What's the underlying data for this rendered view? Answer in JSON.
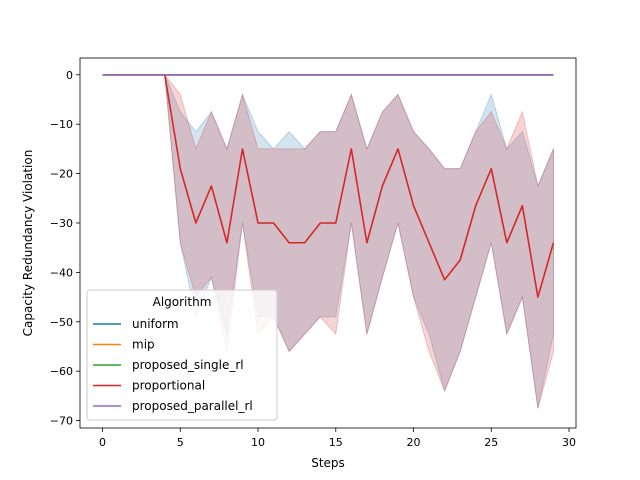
{
  "chart_data": {
    "type": "line",
    "title": "",
    "xlabel": "Steps",
    "ylabel": "Capacity Redundancy Violation",
    "xlim": [
      -1.45,
      30.45
    ],
    "ylim": [
      -71.5,
      3.4
    ],
    "grid": false,
    "legend_title": "Algorithm",
    "legend_position": "lower left",
    "x_ticks": [
      0,
      5,
      10,
      15,
      20,
      25,
      30
    ],
    "y_ticks": [
      0,
      -10,
      -20,
      -30,
      -40,
      -50,
      -60,
      -70
    ],
    "x": [
      0,
      1,
      2,
      3,
      4,
      5,
      6,
      7,
      8,
      9,
      10,
      11,
      12,
      13,
      14,
      15,
      16,
      17,
      18,
      19,
      20,
      21,
      22,
      23,
      24,
      25,
      26,
      27,
      28,
      29
    ],
    "series": [
      {
        "name": "uniform",
        "color": "#1f77b4",
        "values": [
          0,
          0,
          0,
          0,
          0,
          0,
          0,
          0,
          0,
          0,
          0,
          0,
          0,
          0,
          0,
          0,
          0,
          0,
          0,
          0,
          0,
          0,
          0,
          0,
          0,
          0,
          0,
          0,
          0,
          0
        ]
      },
      {
        "name": "mip",
        "color": "#ff7f0e",
        "values": [
          0,
          0,
          0,
          0,
          0,
          0,
          0,
          0,
          0,
          0,
          0,
          0,
          0,
          0,
          0,
          0,
          0,
          0,
          0,
          0,
          0,
          0,
          0,
          0,
          0,
          0,
          0,
          0,
          0,
          0
        ]
      },
      {
        "name": "proposed_single_rl",
        "color": "#2ca02c",
        "values": [
          0,
          0,
          0,
          0,
          0,
          0,
          0,
          0,
          0,
          0,
          0,
          0,
          0,
          0,
          0,
          0,
          0,
          0,
          0,
          0,
          0,
          0,
          0,
          0,
          0,
          0,
          0,
          0,
          0,
          0
        ]
      },
      {
        "name": "proportional",
        "color": "#d62728",
        "values": [
          0,
          0,
          0,
          0,
          0,
          -19,
          -30,
          -22.5,
          -34,
          -15,
          -30,
          -30,
          -34,
          -34,
          -30,
          -30,
          -15,
          -34,
          -22.5,
          -15,
          -26.5,
          -34,
          -41.5,
          -37.5,
          -26.5,
          -19,
          -34,
          -26.5,
          -45,
          -34
        ],
        "ci_upper": [
          0,
          0,
          0,
          0,
          0,
          -4,
          -15,
          -7.5,
          -15,
          -4,
          -15,
          -15,
          -15,
          -15,
          -11.5,
          -11.5,
          -4,
          -15,
          -7.5,
          -4,
          -11.5,
          -15,
          -19,
          -19,
          -11.5,
          -7.5,
          -15,
          -7.5,
          -22.5,
          -15
        ],
        "ci_lower": [
          0,
          0,
          0,
          0,
          0,
          -34,
          -45,
          -41,
          -56,
          -30,
          -52.5,
          -49,
          -56,
          -52.5,
          -49,
          -52.5,
          -30,
          -52.5,
          -41,
          -30,
          -45,
          -56,
          -64,
          -56,
          -45,
          -34,
          -52.5,
          -45,
          -67.5,
          -56
        ]
      },
      {
        "name": "proposed_parallel_rl",
        "color": "#9467bd",
        "values": [
          0,
          0,
          0,
          0,
          0,
          0,
          0,
          0,
          0,
          0,
          0,
          0,
          0,
          0,
          0,
          0,
          0,
          0,
          0,
          0,
          0,
          0,
          0,
          0,
          0,
          0,
          0,
          0,
          0,
          0
        ]
      }
    ],
    "extra_band": {
      "name": "uniform_ci",
      "color": "#1f77b4",
      "ci_upper": [
        0,
        0,
        0,
        0,
        0,
        -7.5,
        -11.5,
        -7.5,
        -15,
        -4,
        -11.5,
        -15,
        -11.5,
        -15,
        -11.5,
        -11.5,
        -4,
        -15,
        -7.5,
        -4,
        -11.5,
        -15,
        -19,
        -19,
        -11.5,
        -4,
        -15,
        -11.5,
        -22.5,
        -15
      ],
      "ci_lower": [
        0,
        0,
        0,
        0,
        0,
        -34,
        -49,
        -41,
        -52.5,
        -30,
        -49,
        -49,
        -56,
        -52.5,
        -49,
        -49,
        -30,
        -52.5,
        -41,
        -30,
        -45,
        -52.5,
        -64,
        -56,
        -45,
        -34,
        -52.5,
        -45,
        -67.5,
        -52.5
      ]
    }
  }
}
